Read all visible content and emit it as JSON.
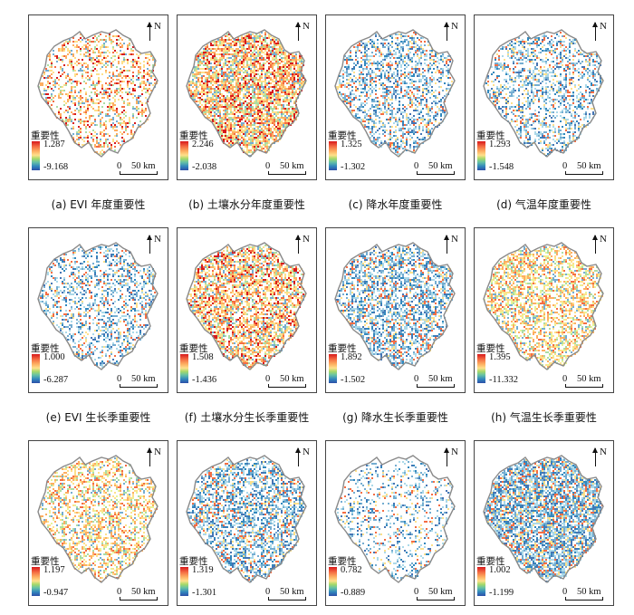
{
  "legend_title": "重要性",
  "north_label": "N",
  "scale_zero": "0",
  "scale_distance": "50 km",
  "colors": {
    "high": "#d7191c",
    "mid": "#fee08b",
    "low": "#2c4fa8",
    "outline": "#8a8a8a"
  },
  "panels": [
    {
      "caption": "(a) EVI 年度重要性",
      "max": "1.287",
      "min": "-9.168",
      "dominant": "orange",
      "density": 0.35
    },
    {
      "caption": "(b) 土壤水分年度重要性",
      "max": "2.246",
      "min": "-2.038",
      "dominant": "orange",
      "density": 0.75
    },
    {
      "caption": "(c) 降水年度重要性",
      "max": "1.325",
      "min": "-1.302",
      "dominant": "blue",
      "density": 0.45
    },
    {
      "caption": "(d) 气温年度重要性",
      "max": "1.293",
      "min": "-1.548",
      "dominant": "blue",
      "density": 0.4
    },
    {
      "caption": "(e) EVI 生长季重要性",
      "max": "1.000",
      "min": "-6.287",
      "dominant": "blue",
      "density": 0.35
    },
    {
      "caption": "(f) 土壤水分生长季重要性",
      "max": "1.508",
      "min": "-1.436",
      "dominant": "orange",
      "density": 0.65
    },
    {
      "caption": "(g) 降水生长季重要性",
      "max": "1.892",
      "min": "-1.502",
      "dominant": "blue",
      "density": 0.55
    },
    {
      "caption": "(h) 气温生长季重要性",
      "max": "1.395",
      "min": "-11.332",
      "dominant": "yellow",
      "density": 0.55
    },
    {
      "caption": "",
      "max": "1.197",
      "min": "-0.947",
      "dominant": "yellow",
      "density": 0.45
    },
    {
      "caption": "",
      "max": "1.319",
      "min": "-1.301",
      "dominant": "blue",
      "density": 0.55
    },
    {
      "caption": "",
      "max": "0.782",
      "min": "-0.889",
      "dominant": "blue",
      "density": 0.25
    },
    {
      "caption": "",
      "max": "1.002",
      "min": "-1.199",
      "dominant": "blue",
      "density": 0.75
    }
  ]
}
